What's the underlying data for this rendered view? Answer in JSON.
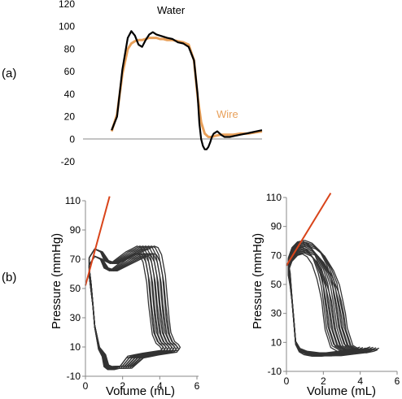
{
  "panel_labels": {
    "a": "(a)",
    "b": "(b)"
  },
  "colors": {
    "water": "#000000",
    "wire": "#e8a05a",
    "loops": "#333333",
    "fit_line": "#d9441a",
    "axis": "#888888"
  },
  "chart_data": [
    {
      "id": "a",
      "type": "line",
      "title": "",
      "xlabel": "",
      "ylabel": "",
      "ylim": [
        -20,
        120
      ],
      "yticks": [
        "120",
        "100",
        "80",
        "60",
        "40",
        "20",
        "0",
        "-20"
      ],
      "xlim": [
        0,
        1
      ],
      "grid": false,
      "series": [
        {
          "name": "Water",
          "x": [
            0.16,
            0.19,
            0.22,
            0.25,
            0.27,
            0.29,
            0.31,
            0.33,
            0.35,
            0.37,
            0.39,
            0.41,
            0.43,
            0.45,
            0.47,
            0.5,
            0.53,
            0.56,
            0.59,
            0.62,
            0.64,
            0.65,
            0.66,
            0.67,
            0.68,
            0.69,
            0.7,
            0.71,
            0.72,
            0.73,
            0.75,
            0.77,
            0.79,
            0.82,
            0.85,
            0.88,
            0.91,
            0.94,
            0.97,
            1.0
          ],
          "y": [
            8,
            20,
            62,
            90,
            96,
            92,
            84,
            82,
            88,
            93,
            95,
            93,
            92,
            91,
            90,
            89,
            86,
            85,
            82,
            70,
            40,
            14,
            0,
            -6,
            -9,
            -9,
            -7,
            -3,
            2,
            5,
            7,
            4,
            2,
            2,
            3,
            4,
            5,
            6,
            7,
            8
          ]
        },
        {
          "name": "Wire",
          "x": [
            0.16,
            0.19,
            0.22,
            0.25,
            0.27,
            0.29,
            0.31,
            0.33,
            0.35,
            0.37,
            0.39,
            0.41,
            0.43,
            0.45,
            0.47,
            0.5,
            0.53,
            0.56,
            0.59,
            0.62,
            0.64,
            0.66,
            0.68,
            0.7,
            0.72,
            0.74,
            0.77,
            0.8,
            0.84,
            0.88,
            0.92,
            0.96,
            1.0
          ],
          "y": [
            7,
            22,
            58,
            80,
            85,
            87,
            88,
            88,
            89,
            90,
            90,
            90,
            89,
            89,
            88,
            88,
            87,
            86,
            84,
            70,
            38,
            15,
            5,
            2,
            2,
            3,
            4,
            4,
            4,
            5,
            5,
            6,
            7
          ]
        }
      ]
    },
    {
      "id": "b1",
      "type": "line",
      "title": "",
      "xlabel": "Volume  (mL)",
      "ylabel": "Pressure (mmHg)",
      "xlim": [
        0,
        6
      ],
      "ylim": [
        -10,
        110
      ],
      "xticks": [
        "0",
        "2",
        "4",
        "6"
      ],
      "yticks": [
        "110",
        "90",
        "70",
        "50",
        "30",
        "10",
        "-10"
      ],
      "grid": false,
      "loop_count": 14,
      "loop_base": {
        "x": [
          0.2,
          0.5,
          0.8,
          1.0,
          1.3,
          1.7,
          2.1,
          2.4,
          2.7,
          2.9,
          3.1,
          3.3,
          3.4,
          3.5,
          3.6,
          3.8,
          4.0,
          4.1,
          4.0,
          3.5,
          3.0,
          2.6,
          2.2,
          1.8,
          1.4,
          1.2,
          1.0,
          0.9,
          0.7,
          0.5,
          0.4,
          0.3,
          0.2,
          0.2,
          0.2
        ],
        "y": [
          72,
          78,
          76,
          70,
          68,
          72,
          76,
          78,
          80,
          79,
          74,
          60,
          45,
          30,
          20,
          14,
          12,
          10,
          8,
          7,
          6,
          5,
          4,
          -3,
          -3,
          -4,
          -2,
          5,
          10,
          25,
          40,
          55,
          65,
          70,
          72
        ]
      },
      "loop_variation": {
        "x_shift": [
          0.0,
          1.0
        ],
        "y_shift": [
          -6,
          4
        ]
      },
      "fit_line": {
        "x": [
          0.0,
          1.3
        ],
        "y": [
          52,
          113
        ]
      }
    },
    {
      "id": "b2",
      "type": "line",
      "title": "",
      "xlabel": "Volume  (mL)",
      "ylabel": "Pressure (mmHg)",
      "xlim": [
        0,
        6
      ],
      "ylim": [
        -10,
        110
      ],
      "xticks": [
        "0",
        "2",
        "4",
        "6"
      ],
      "yticks": [
        "110",
        "90",
        "70",
        "50",
        "30",
        "10",
        "-10"
      ],
      "grid": false,
      "loop_count": 16,
      "loop_base": {
        "x": [
          0.1,
          0.3,
          0.6,
          0.9,
          1.2,
          1.5,
          1.8,
          2.0,
          2.1,
          2.2,
          2.3,
          2.6,
          3.0,
          3.4,
          3.8,
          4.0,
          3.8,
          3.3,
          2.7,
          2.1,
          1.5,
          1.0,
          0.7,
          0.5,
          0.4,
          0.3,
          0.2,
          0.1,
          0.1
        ],
        "y": [
          65,
          72,
          76,
          77,
          75,
          70,
          60,
          50,
          40,
          30,
          20,
          8,
          5,
          4,
          5,
          6,
          5,
          4,
          3,
          2,
          2,
          3,
          5,
          10,
          25,
          40,
          55,
          62,
          65
        ]
      },
      "loop_variation": {
        "x_shift": [
          -0.2,
          1.0
        ],
        "y_shift": [
          -6,
          4
        ]
      },
      "fit_line": {
        "x": [
          0.0,
          2.4
        ],
        "y": [
          63,
          113
        ]
      }
    }
  ]
}
